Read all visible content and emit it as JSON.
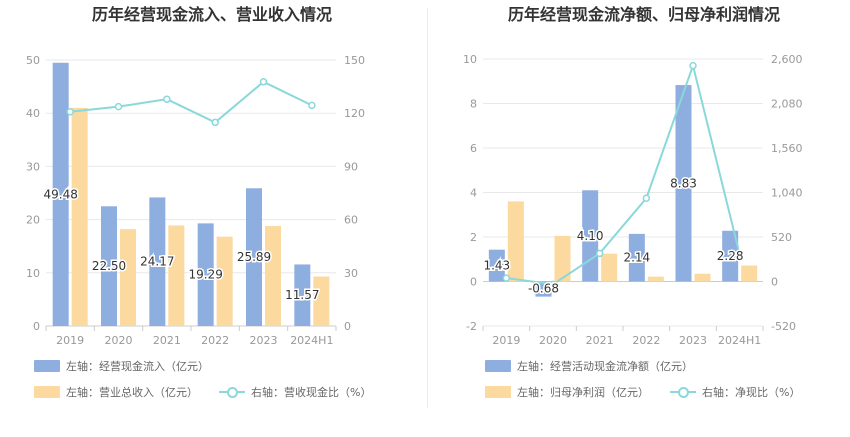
{
  "colors": {
    "bar1": "#8eaee0",
    "bar2": "#fbd99f",
    "line": "#8ad8da",
    "axis_text": "#999999",
    "grid": "#e8e8e8",
    "title": "#333333",
    "label": "#333333"
  },
  "chart_data": [
    {
      "type": "bar",
      "title": "历年经营现金流入、营业收入情况",
      "categories": [
        "2019",
        "2020",
        "2021",
        "2022",
        "2023",
        "2024H1"
      ],
      "left_axis": {
        "ylim": [
          0,
          50
        ],
        "ticks": [
          "0",
          "10",
          "20",
          "30",
          "40",
          "50"
        ]
      },
      "right_axis": {
        "ylim": [
          0,
          150
        ],
        "ticks": [
          "0",
          "30",
          "60",
          "90",
          "120",
          "150"
        ]
      },
      "series": [
        {
          "name": "左轴：经营现金流入（亿元）",
          "kind": "bar",
          "axis": "left",
          "values": [
            49.48,
            22.5,
            24.17,
            19.29,
            25.89,
            11.57
          ],
          "labels": [
            "49.48",
            "22.50",
            "24.17",
            "19.29",
            "25.89",
            "11.57"
          ]
        },
        {
          "name": "左轴：营业总收入（亿元）",
          "kind": "bar",
          "axis": "left",
          "values": [
            41.0,
            18.2,
            18.9,
            16.8,
            18.8,
            9.3
          ]
        },
        {
          "name": "右轴：营收现金比（%）",
          "kind": "line",
          "axis": "right",
          "values": [
            120.8,
            123.7,
            127.9,
            114.8,
            137.7,
            124.4
          ]
        }
      ],
      "legend": [
        {
          "text": "左轴：经营现金流入（亿元）",
          "kind": "bar",
          "color": "#8eaee0"
        },
        {
          "text": "左轴：营业总收入（亿元）",
          "kind": "bar",
          "color": "#fbd99f"
        },
        {
          "text": "右轴：营收现金比（%）",
          "kind": "line",
          "color": "#8ad8da"
        }
      ]
    },
    {
      "type": "bar",
      "title": "历年经营现金流净额、归母净利润情况",
      "categories": [
        "2019",
        "2020",
        "2021",
        "2022",
        "2023",
        "2024H1"
      ],
      "left_axis": {
        "ylim": [
          -2,
          10
        ],
        "ticks": [
          "-2",
          "0",
          "2",
          "4",
          "6",
          "8",
          "10"
        ]
      },
      "right_axis": {
        "ylim": [
          -520,
          2600
        ],
        "ticks": [
          "-520",
          "0",
          "520",
          "1,040",
          "1,560",
          "2,080",
          "2,600"
        ]
      },
      "series": [
        {
          "name": "左轴：经营活动现金流净额（亿元）",
          "kind": "bar",
          "axis": "left",
          "values": [
            1.43,
            -0.68,
            4.1,
            2.14,
            8.83,
            2.28
          ],
          "labels": [
            "1.43",
            "-0.68",
            "4.10",
            "2.14",
            "8.83",
            "2.28"
          ]
        },
        {
          "name": "左轴：归母净利润（亿元）",
          "kind": "bar",
          "axis": "left",
          "values": [
            3.6,
            2.05,
            1.25,
            0.22,
            0.35,
            0.72
          ]
        },
        {
          "name": "右轴：净现比（%）",
          "kind": "line",
          "axis": "right",
          "values": [
            40,
            -33,
            328,
            973,
            2523,
            317
          ]
        }
      ],
      "legend": [
        {
          "text": "左轴：经营活动现金流净额（亿元）",
          "kind": "bar",
          "color": "#8eaee0"
        },
        {
          "text": "左轴：归母净利润（亿元）",
          "kind": "bar",
          "color": "#fbd99f"
        },
        {
          "text": "右轴：净现比（%）",
          "kind": "line",
          "color": "#8ad8da"
        }
      ]
    }
  ]
}
